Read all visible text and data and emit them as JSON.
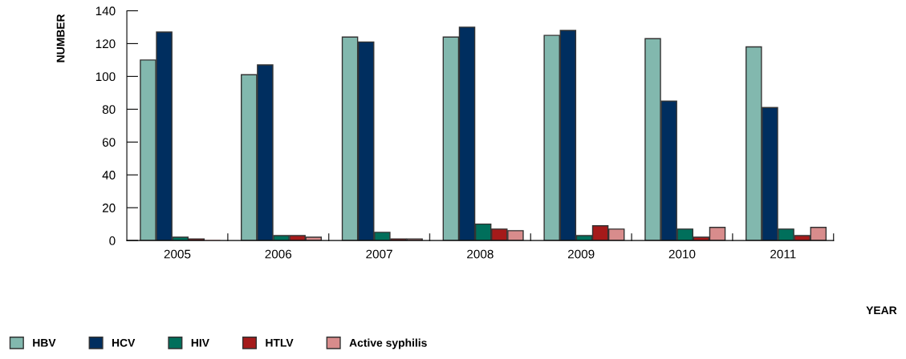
{
  "chart_data": {
    "type": "bar",
    "ylabel": "NUMBER",
    "annotations": [
      "YEAR"
    ],
    "categories": [
      "2005",
      "2006",
      "2007",
      "2008",
      "2009",
      "2010",
      "2011"
    ],
    "series": [
      {
        "name": "HBV",
        "color": "#82b8ae",
        "values": [
          110,
          101,
          124,
          124,
          125,
          123,
          118
        ]
      },
      {
        "name": "HCV",
        "color": "#002e5f",
        "values": [
          127,
          107,
          121,
          130,
          128,
          85,
          81
        ]
      },
      {
        "name": "HIV",
        "color": "#006f5b",
        "values": [
          2,
          3,
          5,
          10,
          3,
          7,
          7
        ]
      },
      {
        "name": "HTLV",
        "color": "#a51a1a",
        "values": [
          1,
          3,
          1,
          7,
          9,
          2,
          3
        ]
      },
      {
        "name": "Active syphilis",
        "color": "#d88c8c",
        "values": [
          0,
          2,
          1,
          6,
          7,
          8,
          8
        ]
      }
    ],
    "ylim": [
      0,
      140
    ],
    "yticks": [
      0,
      20,
      40,
      60,
      80,
      100,
      120,
      140
    ],
    "grid": false,
    "legend": "bottom left"
  }
}
